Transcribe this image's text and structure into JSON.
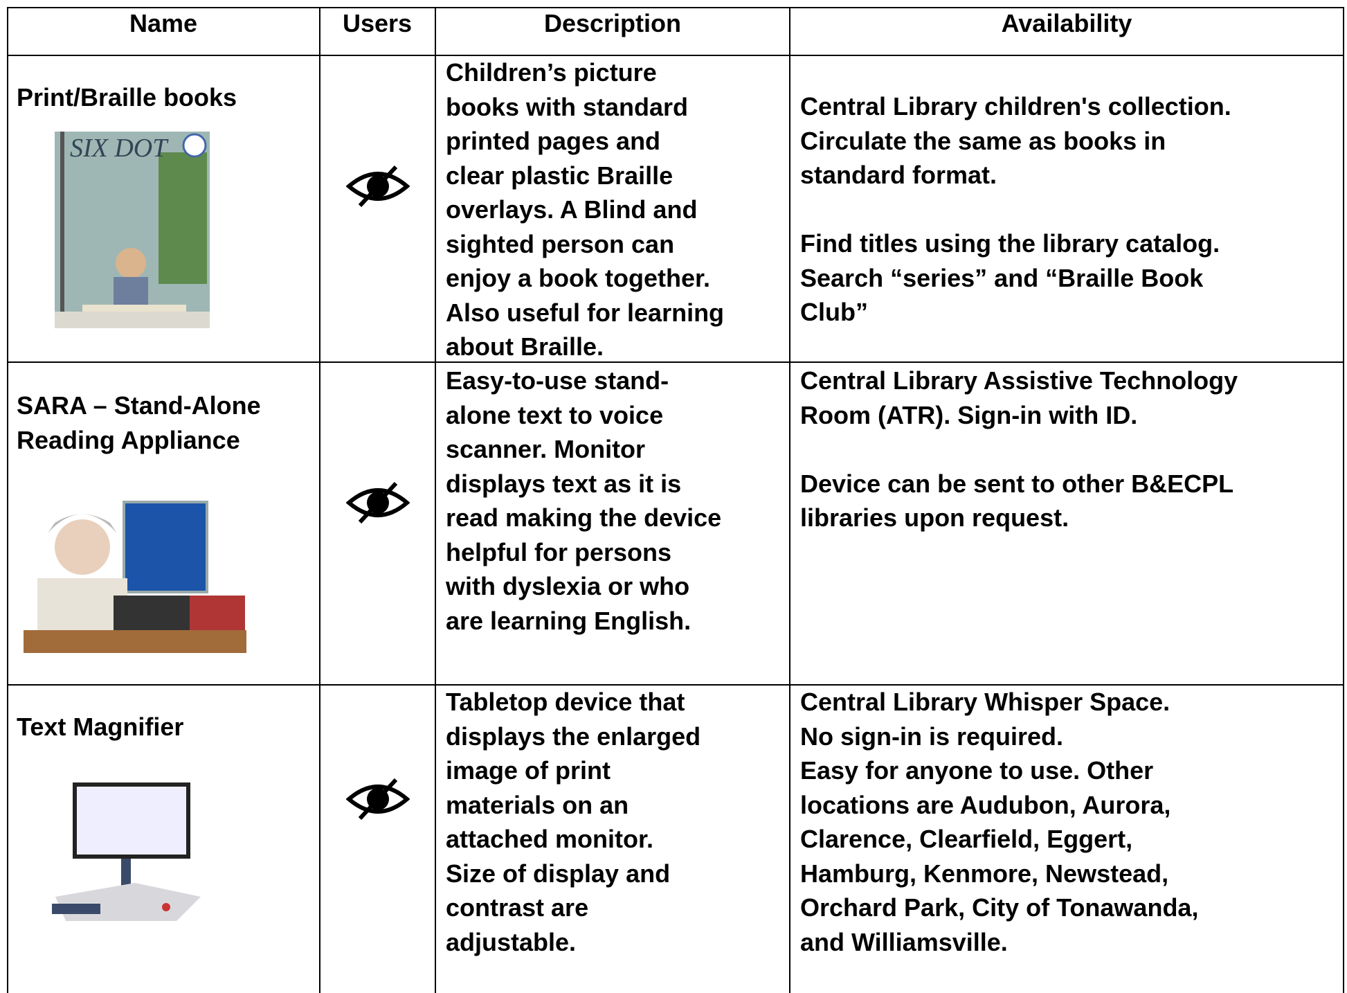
{
  "table": {
    "header": [
      "Name",
      "Users",
      "Description",
      "Availability"
    ],
    "rows": [
      {
        "name": [
          "Print/Braille books"
        ],
        "description": [
          "Children’s picture",
          "books with standard",
          "printed pages and",
          "clear plastic Braille",
          "overlays. A Blind and",
          "sighted person can",
          "enjoy a book together.",
          "Also useful for learning",
          "about Braille."
        ],
        "availability": [
          [
            "Central Library children's collection.",
            "Circulate the same as books in",
            "standard format."
          ],
          [
            "Find titles using the library catalog.",
            "Search “series” and “Braille Book",
            "Club”"
          ]
        ]
      },
      {
        "name": [
          "SARA – Stand-Alone",
          "Reading Appliance"
        ],
        "description": [
          "Easy-to-use stand-",
          "alone text to voice",
          "scanner. Monitor",
          "displays text as it is",
          "read making the device",
          "helpful for persons",
          "with dyslexia or who",
          "are learning English."
        ],
        "availability": [
          [
            "Central Library Assistive Technology",
            "Room (ATR). Sign-in with ID."
          ],
          [
            "Device can be sent to other B&ECPL",
            "libraries upon request."
          ]
        ]
      },
      {
        "name": [
          "Text Magnifier"
        ],
        "description": [
          "Tabletop device that",
          "displays the enlarged",
          "image of print",
          "materials on an",
          "attached monitor.",
          "Size of display and",
          "contrast are",
          "adjustable."
        ],
        "availability": [
          [
            "Central Library Whisper Space.",
            "No sign-in is required.",
            "Easy for anyone to use. Other",
            "locations are Audubon, Aurora,",
            "Clarence, Clearfield, Eggert,",
            "Hamburg, Kenmore, Newstead,",
            "Orchard Park, City of Tonawanda,",
            "and Williamsville."
          ]
        ]
      }
    ]
  }
}
